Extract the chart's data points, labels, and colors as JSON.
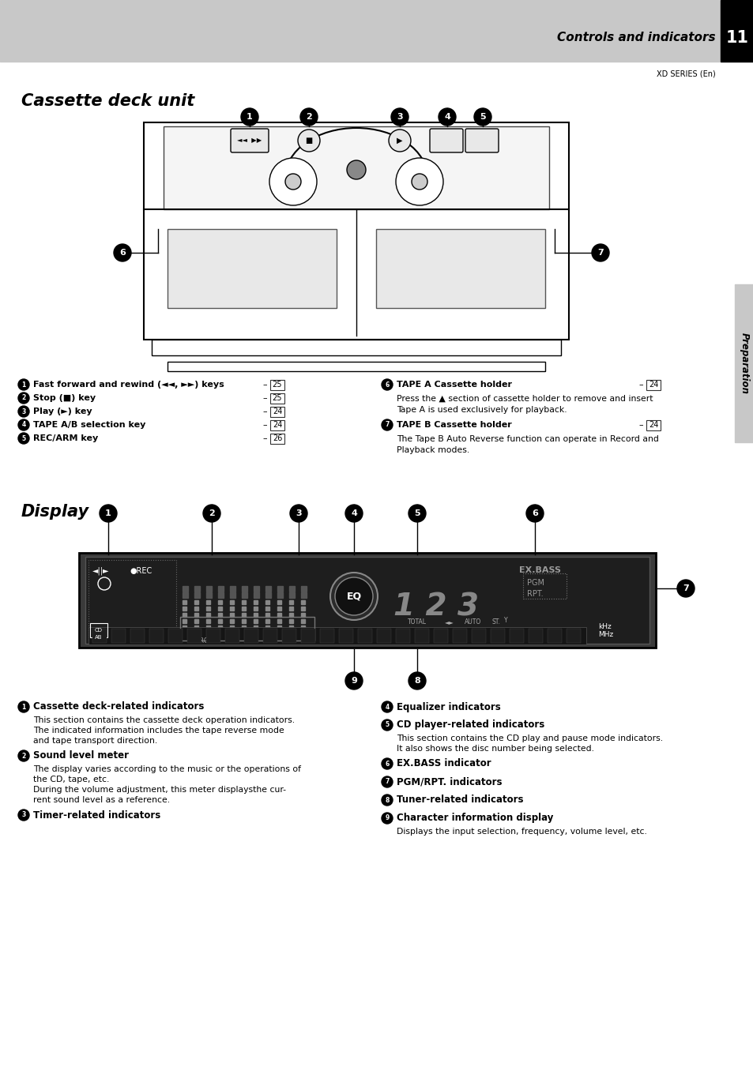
{
  "page_bg": "#ffffff",
  "header_bg": "#c8c8c8",
  "header_text": "Controls and indicators",
  "header_num": "11",
  "series_text": "XD SERIES (En)",
  "section1_title": "Cassette deck unit",
  "section2_title": "Display",
  "side_tab_text": "Preparation",
  "items_col1": [
    {
      "num": "1",
      "bold": "Fast forward and rewind (◄◄, ►►) keys",
      "page": "25"
    },
    {
      "num": "2",
      "bold": "Stop (■) key",
      "page": "25"
    },
    {
      "num": "3",
      "bold": "Play (►) key",
      "page": "24"
    },
    {
      "num": "4",
      "bold": "TAPE A/B selection key",
      "page": "24"
    },
    {
      "num": "5",
      "bold": "REC/ARM key",
      "page": "26"
    }
  ],
  "items_col2": [
    {
      "num": "6",
      "bold": "TAPE A Cassette holder",
      "page": "24",
      "text": "Press the ▲ section of cassette holder to remove and insert\nTape A is used exclusively for playback."
    },
    {
      "num": "7",
      "bold": "TAPE B Cassette holder",
      "page": "24",
      "text": "The Tape B Auto Reverse function can operate in Record and\nPlayback modes."
    }
  ],
  "display_items_col1": [
    {
      "num": "1",
      "bold": "Cassette deck-related indicators",
      "text": "This section contains the cassette deck operation indicators.\nThe indicated information includes the tape reverse mode\nand tape transport direction."
    },
    {
      "num": "2",
      "bold": "Sound level meter",
      "text": "The display varies according to the music or the operations of\nthe CD, tape, etc.\nDuring the volume adjustment, this meter displaysthe cur-\nrent sound level as a reference."
    },
    {
      "num": "3",
      "bold": "Timer-related indicators",
      "text": ""
    }
  ],
  "display_items_col2": [
    {
      "num": "4",
      "bold": "Equalizer indicators",
      "text": ""
    },
    {
      "num": "5",
      "bold": "CD player-related indicators",
      "text": "This section contains the CD play and pause mode indicators.\nIt also shows the disc number being selected."
    },
    {
      "num": "6",
      "bold": "EX.BASS indicator",
      "text": ""
    },
    {
      "num": "7",
      "bold": "PGM/RPT. indicators",
      "text": ""
    },
    {
      "num": "8",
      "bold": "Tuner-related indicators",
      "text": ""
    },
    {
      "num": "9",
      "bold": "Character information display",
      "text": "Displays the input selection, frequency, volume level, etc."
    }
  ]
}
